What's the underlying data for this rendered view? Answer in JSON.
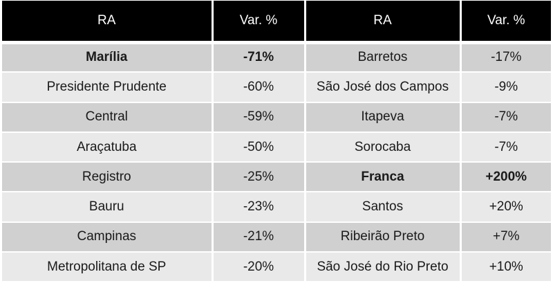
{
  "header": {
    "col1": "RA",
    "col2": "Var. %",
    "col3": "RA",
    "col4": "Var. %"
  },
  "rows": [
    {
      "ra1": "Marília",
      "var1": "-71%",
      "ra2": "Barretos",
      "var2": "-17%"
    },
    {
      "ra1": "Presidente Prudente",
      "var1": "-60%",
      "ra2": "São José dos Campos",
      "var2": "-9%"
    },
    {
      "ra1": "Central",
      "var1": "-59%",
      "ra2": "Itapeva",
      "var2": "-7%"
    },
    {
      "ra1": "Araçatuba",
      "var1": "-50%",
      "ra2": "Sorocaba",
      "var2": "-7%"
    },
    {
      "ra1": "Registro",
      "var1": "-25%",
      "ra2": "Franca",
      "var2": "+200%"
    },
    {
      "ra1": "Bauru",
      "var1": "-23%",
      "ra2": "Santos",
      "var2": "+20%"
    },
    {
      "ra1": "Campinas",
      "var1": "-21%",
      "ra2": "Ribeirão Preto",
      "var2": "+7%"
    },
    {
      "ra1": "Metropolitana de SP",
      "var1": "-20%",
      "ra2": "São José do Rio Preto",
      "var2": "+10%"
    }
  ],
  "colors": {
    "header_bg": "#000000",
    "header_text": "#ffffff",
    "row_dark": "#d0d0d0",
    "row_light": "#e9e9e9"
  }
}
